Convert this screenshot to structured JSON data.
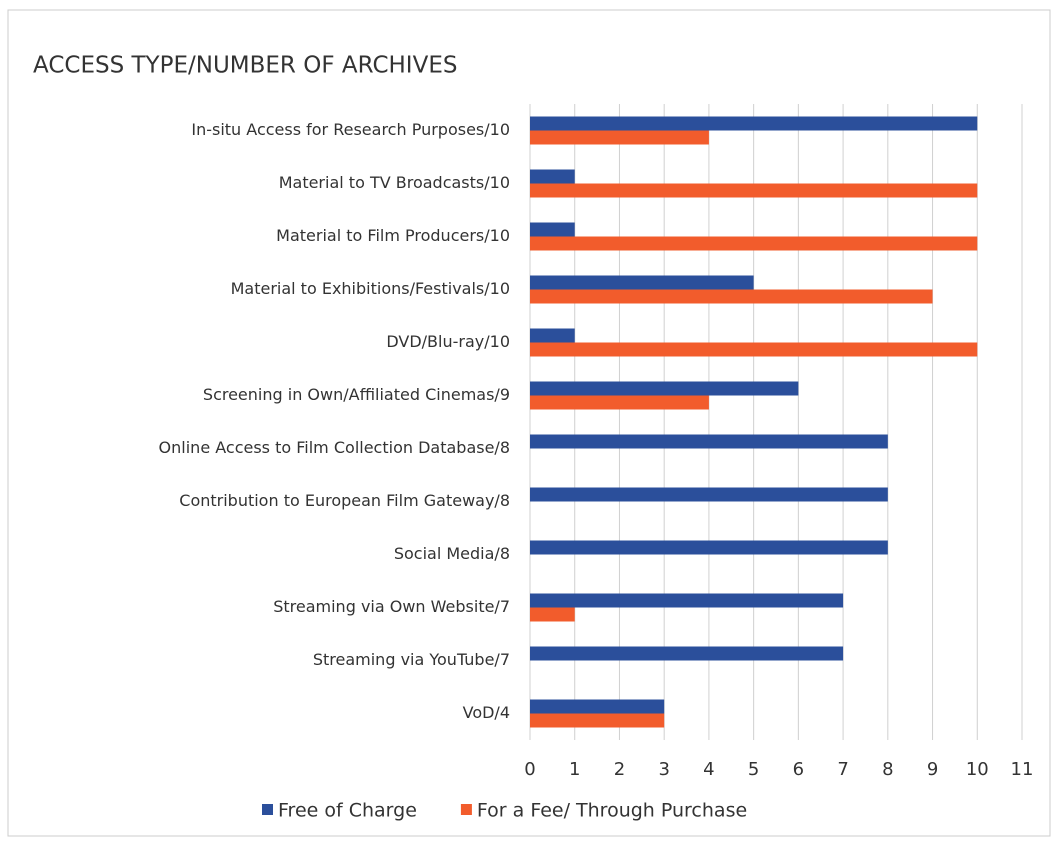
{
  "chart_data": {
    "type": "bar",
    "orientation": "horizontal",
    "title": "ACCESS TYPE/NUMBER OF ARCHIVES",
    "categories": [
      "In-situ Access for Research Purposes/10",
      "Material to TV Broadcasts/10",
      "Material to Film Producers/10",
      "Material to Exhibitions/Festivals/10",
      "DVD/Blu-ray/10",
      "Screening in Own/Affiliated Cinemas/9",
      "Online Access to Film Collection Database/8",
      "Contribution to European Film Gateway/8",
      "Social Media/8",
      "Streaming via Own Website/7",
      "Streaming via YouTube/7",
      "VoD/4"
    ],
    "series": [
      {
        "name": "Free of Charge",
        "color": "#2b4f9b",
        "values": [
          10,
          1,
          1,
          5,
          1,
          6,
          8,
          8,
          8,
          7,
          7,
          3
        ]
      },
      {
        "name": "For a Fee/ Through Purchase",
        "color": "#f25c2c",
        "values": [
          4,
          10,
          10,
          9,
          10,
          4,
          0,
          0,
          0,
          1,
          0,
          3
        ]
      }
    ],
    "xlim": [
      0,
      11
    ],
    "xticks": [
      0,
      1,
      2,
      3,
      4,
      5,
      6,
      7,
      8,
      9,
      10,
      11
    ],
    "grid": true,
    "legend": "bottom"
  }
}
